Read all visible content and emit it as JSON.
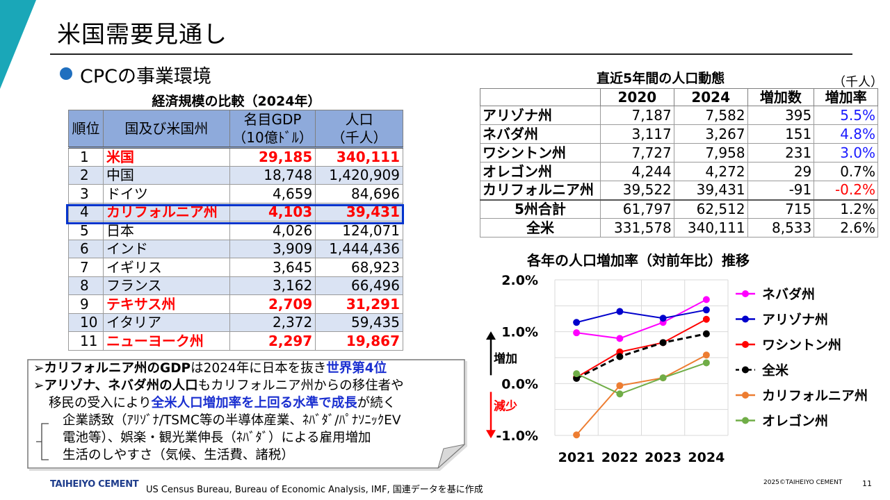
{
  "title": "米国需要見通し",
  "section_heading": "CPCの事業環境",
  "gdp_table": {
    "caption": "経済規模の比較（2024年）",
    "headers": {
      "rank": "順位",
      "country": "国及び米国州",
      "gdp_l1": "名目GDP",
      "gdp_l2": "（10億ﾄﾞﾙ）",
      "pop_l1": "人口",
      "pop_l2": "（千人）"
    },
    "rows": [
      {
        "rank": "1",
        "name": "米国",
        "gdp": "29,185",
        "pop": "340,111",
        "highlight": true
      },
      {
        "rank": "2",
        "name": "中国",
        "gdp": "18,748",
        "pop": "1,420,909",
        "highlight": false
      },
      {
        "rank": "3",
        "name": "ドイツ",
        "gdp": "4,659",
        "pop": "84,696",
        "highlight": false
      },
      {
        "rank": "4",
        "name": "カリフォルニア州",
        "gdp": "4,103",
        "pop": "39,431",
        "highlight": true
      },
      {
        "rank": "5",
        "name": "日本",
        "gdp": "4,026",
        "pop": "124,071",
        "highlight": false
      },
      {
        "rank": "6",
        "name": "インド",
        "gdp": "3,909",
        "pop": "1,444,436",
        "highlight": false
      },
      {
        "rank": "7",
        "name": "イギリス",
        "gdp": "3,645",
        "pop": "68,923",
        "highlight": false
      },
      {
        "rank": "8",
        "name": "フランス",
        "gdp": "3,162",
        "pop": "66,496",
        "highlight": false
      },
      {
        "rank": "9",
        "name": "テキサス州",
        "gdp": "2,709",
        "pop": "31,291",
        "highlight": true
      },
      {
        "rank": "10",
        "name": "イタリア",
        "gdp": "2,372",
        "pop": "59,435",
        "highlight": false
      },
      {
        "rank": "11",
        "name": "ニューヨーク州",
        "gdp": "2,297",
        "pop": "19,867",
        "highlight": true
      }
    ]
  },
  "pop_table": {
    "caption": "直近5年間の人口動態",
    "unit": "（千人）",
    "headers": [
      "",
      "2020",
      "2024",
      "増加数",
      "増加率"
    ],
    "rows": [
      {
        "name": "アリゾナ州",
        "y2020": "7,187",
        "y2024": "7,582",
        "inc": "395",
        "rate": "5.5%",
        "rate_color": "blue"
      },
      {
        "name": "ネバダ州",
        "y2020": "3,117",
        "y2024": "3,267",
        "inc": "151",
        "rate": "4.8%",
        "rate_color": "blue"
      },
      {
        "name": "ワシントン州",
        "y2020": "7,727",
        "y2024": "7,958",
        "inc": "231",
        "rate": "3.0%",
        "rate_color": "blue"
      },
      {
        "name": "オレゴン州",
        "y2020": "4,244",
        "y2024": "4,272",
        "inc": "29",
        "rate": "0.7%",
        "rate_color": "black"
      },
      {
        "name": "カリフォルニア州",
        "y2020": "39,522",
        "y2024": "39,431",
        "inc": "-91",
        "rate": "-0.2%",
        "rate_color": "red"
      },
      {
        "name": "5州合計",
        "y2020": "61,797",
        "y2024": "62,512",
        "inc": "715",
        "rate": "1.2%",
        "rate_color": "black",
        "center": true,
        "sum": true
      },
      {
        "name": "全米",
        "y2020": "331,578",
        "y2024": "340,111",
        "inc": "8,533",
        "rate": "2.6%",
        "rate_color": "black",
        "center": true
      }
    ]
  },
  "chart_data": {
    "type": "line",
    "title": "各年の人口増加率（対前年比）推移",
    "categories": [
      "2021",
      "2022",
      "2023",
      "2024"
    ],
    "y_ticks": [
      "2.0%",
      "1.0%",
      "0.0%",
      "-1.0%"
    ],
    "ylim": [
      -1.0,
      2.0
    ],
    "increase_label": "増加",
    "decrease_label": "減少",
    "series": [
      {
        "name": "ネバダ州",
        "color": "#ff00ff",
        "values": [
          0.98,
          0.87,
          1.18,
          1.62
        ],
        "dash": false
      },
      {
        "name": "アリゾナ州",
        "color": "#0000cc",
        "values": [
          1.18,
          1.39,
          1.26,
          1.42
        ],
        "dash": false
      },
      {
        "name": "ワシントン州",
        "color": "#ff0000",
        "values": [
          0.12,
          0.61,
          0.79,
          1.24
        ],
        "dash": false
      },
      {
        "name": "全米",
        "color": "#000000",
        "values": [
          0.1,
          0.52,
          0.79,
          0.96
        ],
        "dash": true
      },
      {
        "name": "カリフォルニア州",
        "color": "#ed7d31",
        "values": [
          -0.99,
          -0.04,
          0.11,
          0.55
        ],
        "dash": false
      },
      {
        "name": "オレゴン州",
        "color": "#70ad47",
        "values": [
          0.19,
          -0.2,
          0.11,
          0.4
        ],
        "dash": false
      }
    ]
  },
  "note": {
    "l1_a": "カリフォルニア州のGDP",
    "l1_b": "は2024年に日本を抜き",
    "l1_c": "世界第4位",
    "l2_a": "アリゾナ、ネバダ州の人口",
    "l2_b": "もカリフォルニア州からの移住者や",
    "l3_a": "移民の受入により",
    "l3_b": "全米人口増加率を上回る水準で成長",
    "l3_c": "が続く",
    "sub1": "企業誘致（ｱﾘｿﾞﾅ/TSMC等の半導体産業、ﾈﾊﾞﾀﾞ/ﾊﾟﾅｿﾆｯｸEV",
    "sub2": "電池等）、娯楽・観光業伸長（ﾈﾊﾞﾀﾞ）による雇用増加",
    "sub3": "生活のしやすさ（気候、生活費、諸税）",
    "bullet_mark": "➢"
  },
  "footer": {
    "logo": "TAIHEIYO CEMENT",
    "source": "US Census Bureau, Bureau of Economic Analysis, IMF, 国連データを基に作成",
    "copyright": "2025©TAIHEIYO CEMENT",
    "page": "11"
  },
  "colors": {
    "accent_teal": "#1aa7b8",
    "bullet_blue": "#1f6fbf",
    "header_blue": "#8eaadb",
    "row_alt": "#dae3f3",
    "highlight_red": "#ff0000",
    "box_blue": "#0033cc"
  }
}
